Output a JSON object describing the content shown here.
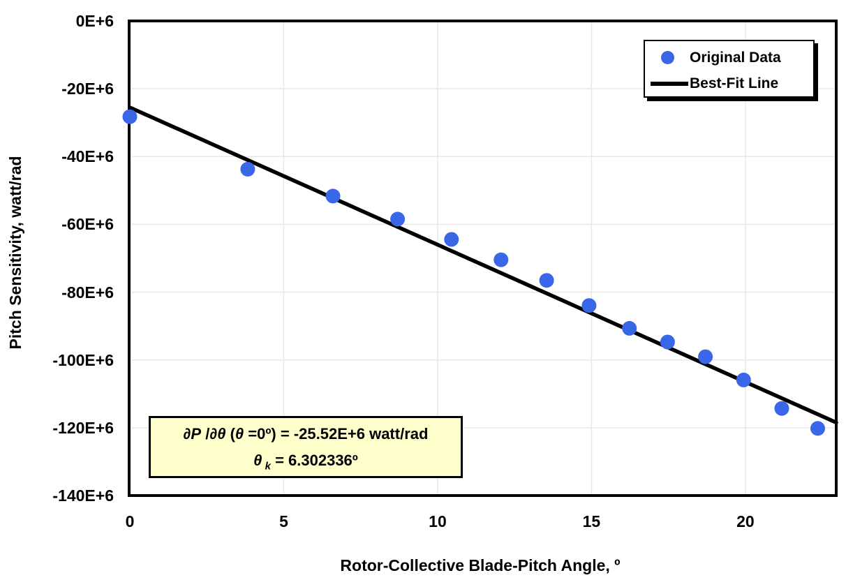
{
  "colors": {
    "marker_blue": "#3A67E8",
    "line_black": "#000000",
    "grid_gray": "#E8E8E8",
    "annotation_bg": "#FFFFCC",
    "plot_bg": "#FFFFFF"
  },
  "axes": {
    "x_label": "Rotor-Collective Blade-Pitch Angle, º",
    "y_label": "Pitch Sensitivity, watt/rad",
    "x_ticks": [
      {
        "label": "0",
        "value": 0
      },
      {
        "label": "5",
        "value": 5
      },
      {
        "label": "10",
        "value": 10
      },
      {
        "label": "15",
        "value": 15
      },
      {
        "label": "20",
        "value": 20
      }
    ],
    "y_ticks": [
      {
        "label": "0E+6",
        "value": 0
      },
      {
        "label": "-20E+6",
        "value": -20
      },
      {
        "label": "-40E+6",
        "value": -40
      },
      {
        "label": "-60E+6",
        "value": -60
      },
      {
        "label": "-80E+6",
        "value": -80
      },
      {
        "label": "-100E+6",
        "value": -100
      },
      {
        "label": "-120E+6",
        "value": -120
      },
      {
        "label": "-140E+6",
        "value": -140
      }
    ]
  },
  "legend": {
    "items": [
      {
        "label": "Original Data",
        "marker": "dot"
      },
      {
        "label": "Best-Fit Line",
        "marker": "line"
      }
    ]
  },
  "annotation": {
    "line1_parts": [
      {
        "text": "∂P",
        "italic": true
      },
      {
        "text": " /",
        "italic": false
      },
      {
        "text": "∂θ",
        "italic": true
      },
      {
        "text": " (",
        "italic": false
      },
      {
        "text": "θ",
        "italic": true
      },
      {
        "text": " =0º) = -25.52E+6 watt/rad",
        "italic": false
      }
    ],
    "line2_parts": [
      {
        "text": "θ",
        "italic": true
      },
      {
        "text": " k",
        "italic": true,
        "subscript": true
      },
      {
        "text": " = 6.302336º",
        "italic": false
      }
    ]
  },
  "chart_data": {
    "type": "scatter",
    "title": "",
    "xlabel": "Rotor-Collective Blade-Pitch Angle, º",
    "ylabel": "Pitch Sensitivity, watt/rad",
    "x_unit": "degrees",
    "y_unit": "watt/rad, values in millions (E+6)",
    "xlim": [
      0,
      22.95
    ],
    "ylim_E6": [
      0,
      -140
    ],
    "grid": true,
    "legend_position": "top-right",
    "series": [
      {
        "name": "Original Data",
        "type": "scatter",
        "x": [
          0.0,
          3.83,
          6.6,
          8.7,
          10.45,
          12.06,
          13.54,
          14.92,
          16.23,
          17.47,
          18.7,
          19.94,
          21.18,
          22.35
        ],
        "y_E6": [
          -28.24,
          -43.73,
          -51.66,
          -58.44,
          -64.44,
          -70.46,
          -76.53,
          -83.94,
          -90.67,
          -94.71,
          -99.04,
          -105.9,
          -114.3,
          -120.2
        ]
      },
      {
        "name": "Best-Fit Line",
        "type": "line",
        "formula": "∂P/∂θ = -25.52E+6 × (1 + θ/6.302336)",
        "intercept_E6": -25.52,
        "theta_k_deg": 6.302336,
        "x_range": [
          0,
          22.95
        ]
      }
    ]
  }
}
